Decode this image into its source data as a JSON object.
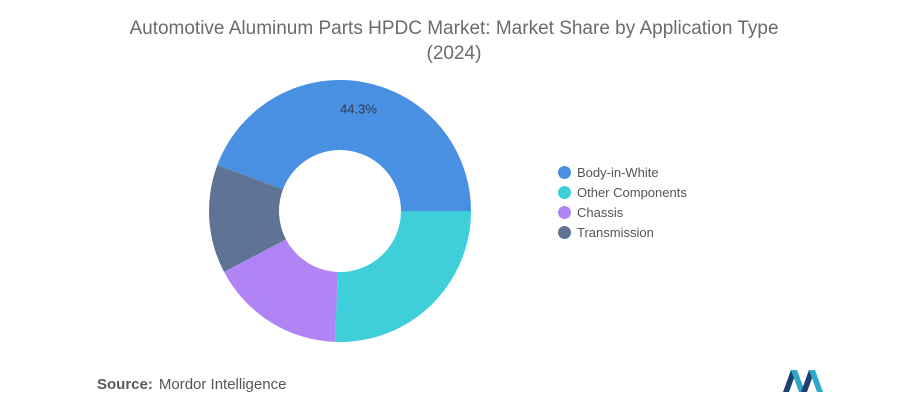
{
  "chart_data": {
    "type": "pie",
    "title_line1": "Automotive Aluminum Parts HPDC Market: Market Share by Application Type",
    "title_line2": "(2024)",
    "categories": [
      "Body-in-White",
      "Other Components",
      "Chassis",
      "Transmission"
    ],
    "values": [
      44.3,
      25.6,
      16.7,
      13.4
    ],
    "colors": [
      "#4a90e2",
      "#3ecfdb",
      "#b084f5",
      "#5f7394"
    ],
    "data_labels": [
      "44.3%",
      "",
      "",
      ""
    ],
    "legend_position": "right"
  },
  "source": {
    "label": "Source:",
    "text": "Mordor Intelligence"
  },
  "logo": {
    "icon": "mordor-intelligence-logo-icon"
  }
}
